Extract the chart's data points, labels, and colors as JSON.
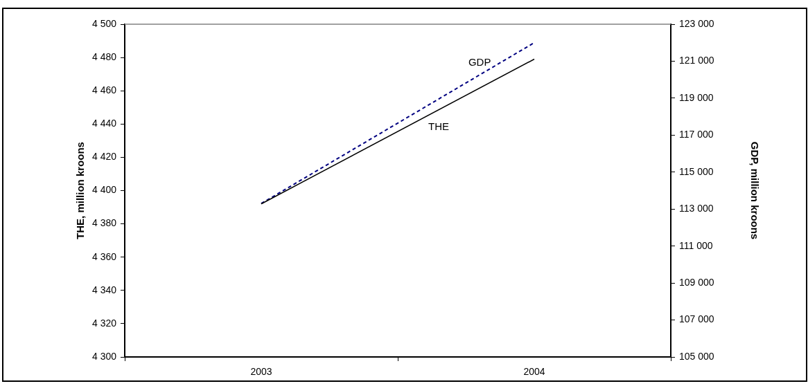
{
  "chart_data": {
    "type": "line",
    "categories": [
      "2003",
      "2004"
    ],
    "ylabel": "THE, million kroons",
    "y2label": "GDP, million kroons",
    "ylim": [
      4300,
      4500
    ],
    "yticks": [
      {
        "value": 4300,
        "label": "4 300"
      },
      {
        "value": 4320,
        "label": "4 320"
      },
      {
        "value": 4340,
        "label": "4 340"
      },
      {
        "value": 4360,
        "label": "4 360"
      },
      {
        "value": 4380,
        "label": "4 380"
      },
      {
        "value": 4400,
        "label": "4 400"
      },
      {
        "value": 4420,
        "label": "4 420"
      },
      {
        "value": 4440,
        "label": "4 440"
      },
      {
        "value": 4460,
        "label": "4 460"
      },
      {
        "value": 4480,
        "label": "4 480"
      },
      {
        "value": 4500,
        "label": "4 500"
      }
    ],
    "y2lim": [
      105000,
      123000
    ],
    "y2ticks": [
      {
        "value": 105000,
        "label": "105 000"
      },
      {
        "value": 107000,
        "label": "107 000"
      },
      {
        "value": 109000,
        "label": "109 000"
      },
      {
        "value": 111000,
        "label": "111 000"
      },
      {
        "value": 113000,
        "label": "113 000"
      },
      {
        "value": 115000,
        "label": "115 000"
      },
      {
        "value": 117000,
        "label": "117 000"
      },
      {
        "value": 119000,
        "label": "119 000"
      },
      {
        "value": 121000,
        "label": "121 000"
      },
      {
        "value": 123000,
        "label": "123 000"
      }
    ],
    "grid": false,
    "legend": false,
    "marker": "none",
    "series": [
      {
        "name": "THE",
        "color": "#000000",
        "values": [
          4392,
          4479
        ],
        "line_style": "solid"
      },
      {
        "name": "GDP",
        "color": "#000080",
        "values": [
          113300,
          122000
        ],
        "axis": "y2",
        "line_style": "dashed"
      }
    ]
  }
}
